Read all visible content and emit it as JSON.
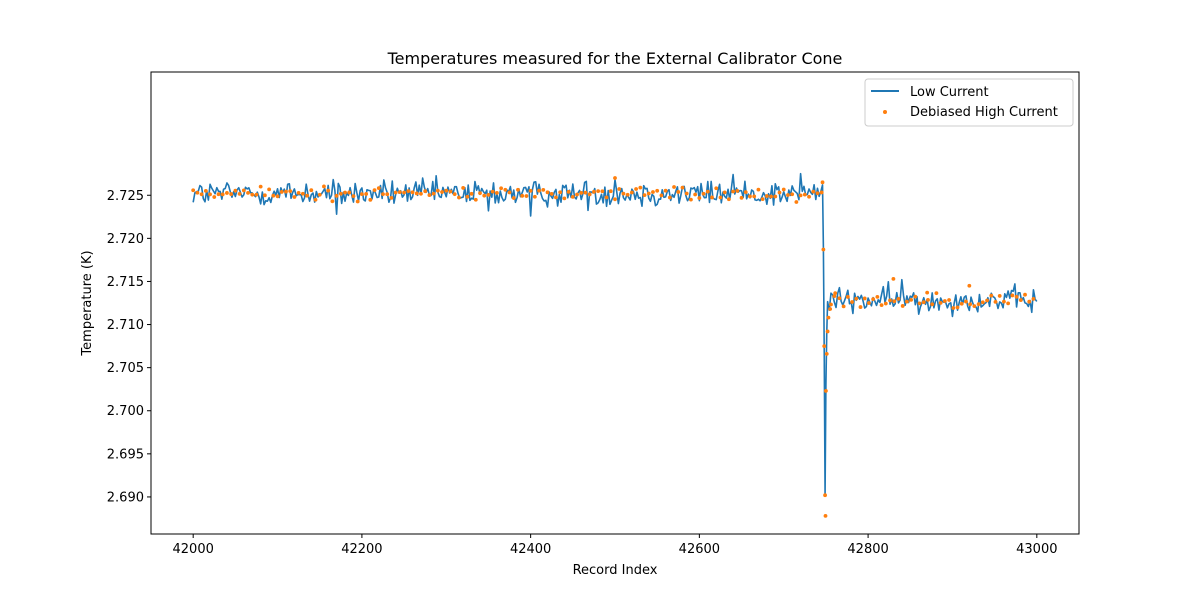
{
  "chart_data": {
    "type": "line",
    "title": "Temperatures measured for the External Calibrator Cone",
    "xlabel": "Record Index",
    "ylabel": "Temperature (K)",
    "xlim": [
      41950,
      43050
    ],
    "ylim": [
      2.6857,
      2.7393
    ],
    "x_ticks": [
      42000,
      42200,
      42400,
      42600,
      42800,
      43000
    ],
    "x_tick_labels": [
      "42000",
      "42200",
      "42400",
      "42600",
      "42800",
      "43000"
    ],
    "y_ticks": [
      2.69,
      2.695,
      2.7,
      2.705,
      2.71,
      2.715,
      2.72,
      2.725
    ],
    "y_tick_labels": [
      "2.690",
      "2.695",
      "2.700",
      "2.705",
      "2.710",
      "2.715",
      "2.720",
      "2.725"
    ],
    "legend_position": "top-right",
    "colors": {
      "low_current": "#1f77b4",
      "debiased_high_current": "#ff7f0e"
    },
    "series": [
      {
        "name": "Low Current",
        "kind": "line",
        "x_start": 42000,
        "x_end": 43000,
        "segments": [
          {
            "x_from": 42000,
            "x_to": 42745,
            "mean": 2.7252,
            "noise_sd": 0.00075,
            "spikes": [
              {
                "x": 42170,
                "y": 2.7228
              },
              {
                "x": 42350,
                "y": 2.7232
              },
              {
                "x": 42400,
                "y": 2.7226
              },
              {
                "x": 42500,
                "y": 2.7268
              },
              {
                "x": 42640,
                "y": 2.7274
              },
              {
                "x": 42720,
                "y": 2.7275
              }
            ]
          },
          {
            "x_from": 42746,
            "x_to": 42751,
            "points": [
              {
                "x": 42746,
                "y": 2.7262
              },
              {
                "x": 42747,
                "y": 2.719
              },
              {
                "x": 42748,
                "y": 2.707
              },
              {
                "x": 42749,
                "y": 2.6902
              },
              {
                "x": 42750,
                "y": 2.703
              },
              {
                "x": 42751,
                "y": 2.709
              }
            ]
          },
          {
            "x_from": 42752,
            "x_to": 43000,
            "mean": 2.7128,
            "noise_sd": 0.0007,
            "spikes": [
              {
                "x": 42840,
                "y": 2.7152
              },
              {
                "x": 42893,
                "y": 2.7155
              },
              {
                "x": 42860,
                "y": 2.7112
              }
            ]
          }
        ]
      },
      {
        "name": "Debiased High Current",
        "kind": "scatter",
        "x_start": 42000,
        "x_end": 43000,
        "step": 5,
        "segments": [
          {
            "x_from": 42000,
            "x_to": 42745,
            "mean": 2.7252,
            "noise_sd": 0.0004
          },
          {
            "x_from": 42746,
            "x_to": 42755,
            "points": [
              {
                "x": 42746,
                "y": 2.7265
              },
              {
                "x": 42747,
                "y": 2.7187
              },
              {
                "x": 42748,
                "y": 2.7075
              },
              {
                "x": 42749,
                "y": 2.6902
              },
              {
                "x": 42749.5,
                "y": 2.6878
              },
              {
                "x": 42750,
                "y": 2.7023
              },
              {
                "x": 42751,
                "y": 2.7066
              },
              {
                "x": 42752,
                "y": 2.7092
              },
              {
                "x": 42753,
                "y": 2.7108
              },
              {
                "x": 42755,
                "y": 2.7118
              }
            ]
          },
          {
            "x_from": 42756,
            "x_to": 43000,
            "mean": 2.7128,
            "noise_sd": 0.0004,
            "outliers": [
              {
                "x": 42830,
                "y": 2.7153
              },
              {
                "x": 42500,
                "y": 2.727
              },
              {
                "x": 42920,
                "y": 2.7145
              },
              {
                "x": 42760,
                "y": 2.7133
              },
              {
                "x": 42870,
                "y": 2.7137
              }
            ]
          }
        ]
      }
    ]
  }
}
